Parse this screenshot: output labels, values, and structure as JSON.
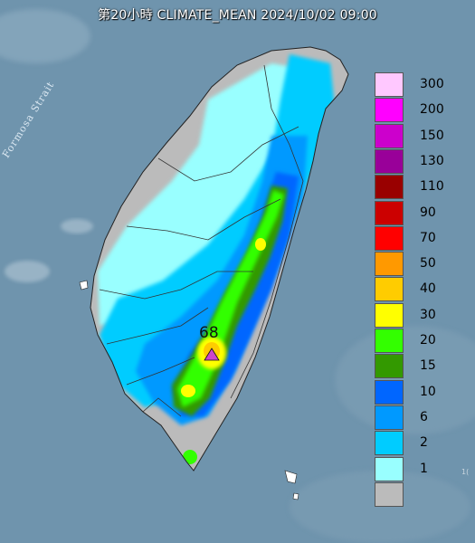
{
  "title": "第20小時  CLIMATE_MEAN 2024/10/02 09:00",
  "map_label": "Formosa Strait",
  "peak": {
    "value": "68",
    "marker": "triangle-marker",
    "marker_color": "#cc44cc"
  },
  "legend": [
    {
      "label": "300",
      "color": "#ffc8ff"
    },
    {
      "label": "200",
      "color": "#ff00ff"
    },
    {
      "label": "150",
      "color": "#cc00cc"
    },
    {
      "label": "130",
      "color": "#990099"
    },
    {
      "label": "110",
      "color": "#990000"
    },
    {
      "label": "90",
      "color": "#cc0000"
    },
    {
      "label": "70",
      "color": "#ff0000"
    },
    {
      "label": "50",
      "color": "#ff9900"
    },
    {
      "label": "40",
      "color": "#ffcc00"
    },
    {
      "label": "30",
      "color": "#ffff00"
    },
    {
      "label": "20",
      "color": "#33ff00"
    },
    {
      "label": "15",
      "color": "#339900"
    },
    {
      "label": "10",
      "color": "#0066ff"
    },
    {
      "label": "6",
      "color": "#0099ff"
    },
    {
      "label": "2",
      "color": "#00ccff"
    },
    {
      "label": "1",
      "color": "#99ffff"
    },
    {
      "label": "",
      "color": "#bbbbbb"
    }
  ],
  "edge_mark": "1("
}
